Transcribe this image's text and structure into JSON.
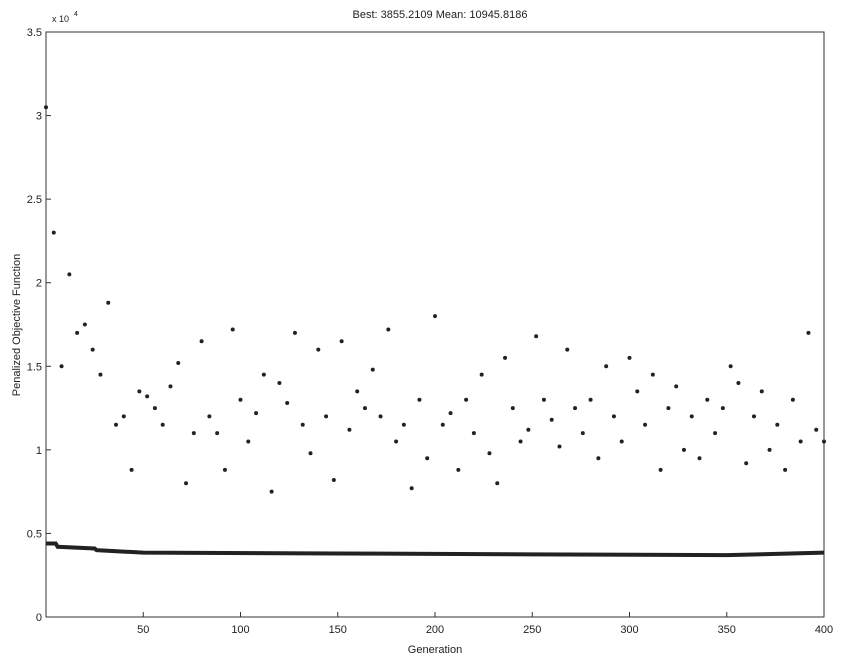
{
  "chart_data": {
    "type": "scatter",
    "title": "Best: 3855.2109 Mean: 10945.8186",
    "x_label": "Generation",
    "y_label": "Penalized Objective Function",
    "y_multiplier": "x 10",
    "y_multiplier_exponent": "4",
    "xlim": [
      0,
      400
    ],
    "xticks": [
      50,
      100,
      150,
      200,
      250,
      300,
      350,
      400
    ],
    "ylim": [
      0,
      3.5
    ],
    "yticks": [
      0,
      0.5,
      1,
      1.5,
      2,
      2.5,
      3,
      3.5
    ],
    "series": [
      {
        "type": "scatter",
        "color": "#222222",
        "x": [
          0,
          4,
          8,
          12,
          16,
          20,
          24,
          28,
          32,
          36,
          40,
          44,
          48,
          52,
          56,
          60,
          64,
          68,
          72,
          76,
          80,
          84,
          88,
          92,
          96,
          100,
          104,
          108,
          112,
          116,
          120,
          124,
          128,
          132,
          136,
          140,
          144,
          148,
          152,
          156,
          160,
          164,
          168,
          172,
          176,
          180,
          184,
          188,
          192,
          196,
          200,
          204,
          208,
          212,
          216,
          220,
          224,
          228,
          232,
          236,
          240,
          244,
          248,
          252,
          256,
          260,
          264,
          268,
          272,
          276,
          280,
          284,
          288,
          292,
          296,
          300,
          304,
          308,
          312,
          316,
          320,
          324,
          328,
          332,
          336,
          340,
          344,
          348,
          352,
          356,
          360,
          364,
          368,
          372,
          376,
          380,
          384,
          388,
          392,
          396,
          400
        ],
        "values": [
          3.05,
          2.3,
          1.5,
          2.05,
          1.7,
          1.75,
          1.6,
          1.45,
          1.88,
          1.15,
          1.2,
          0.88,
          1.35,
          1.32,
          1.25,
          1.15,
          1.38,
          1.52,
          0.8,
          1.1,
          1.65,
          1.2,
          1.1,
          0.88,
          1.72,
          1.3,
          1.05,
          1.22,
          1.45,
          0.75,
          1.4,
          1.28,
          1.7,
          1.15,
          0.98,
          1.6,
          1.2,
          0.82,
          1.65,
          1.12,
          1.35,
          1.25,
          1.48,
          1.2,
          1.72,
          1.05,
          1.15,
          0.77,
          1.3,
          0.95,
          1.8,
          1.15,
          1.22,
          0.88,
          1.3,
          1.1,
          1.45,
          0.98,
          0.8,
          1.55,
          1.25,
          1.05,
          1.12,
          1.68,
          1.3,
          1.18,
          1.02,
          1.6,
          1.25,
          1.1,
          1.3,
          0.95,
          1.5,
          1.2,
          1.05,
          1.55,
          1.35,
          1.15,
          1.45,
          0.88,
          1.25,
          1.38,
          1.0,
          1.2,
          0.95,
          1.3,
          1.1,
          1.25,
          1.5,
          1.4,
          0.92,
          1.2,
          1.35,
          1.0,
          1.15,
          0.88,
          1.3,
          1.05,
          1.7,
          1.12,
          1.05
        ]
      },
      {
        "type": "line",
        "color": "#222222",
        "x": [
          0,
          5,
          6,
          25,
          26,
          50,
          150,
          250,
          350,
          400
        ],
        "values": [
          0.44,
          0.44,
          0.42,
          0.41,
          0.4,
          0.385,
          0.38,
          0.375,
          0.37,
          0.3855
        ]
      }
    ]
  }
}
